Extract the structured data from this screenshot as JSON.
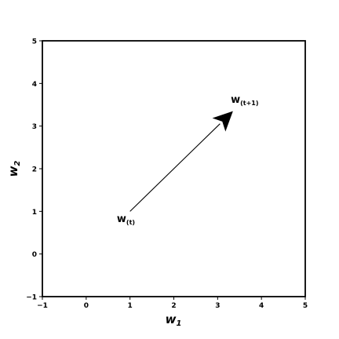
{
  "chart_data": {
    "type": "scatter",
    "xlim": [
      -1,
      5
    ],
    "ylim": [
      -1,
      5
    ],
    "x_ticks": [
      -1,
      0,
      1,
      2,
      3,
      4,
      5
    ],
    "y_ticks": [
      -1,
      0,
      1,
      2,
      3,
      4,
      5
    ],
    "x_tick_labels": [
      "−1",
      "0",
      "1",
      "2",
      "3",
      "4",
      "5"
    ],
    "y_tick_labels": [
      "−1",
      "0",
      "1",
      "2",
      "3",
      "4",
      "5"
    ],
    "xlabel": {
      "base": "w",
      "sub": "1"
    },
    "ylabel": {
      "base": "w",
      "sub": "2"
    },
    "grid": false,
    "arrow": {
      "start": {
        "x": 1.0,
        "y": 1.0
      },
      "end": {
        "x": 3.35,
        "y": 3.35
      },
      "color": "#000000"
    },
    "annotations": [
      {
        "id": "w-t",
        "base": "w",
        "sub": "(t)",
        "x": 0.7,
        "y": 0.75
      },
      {
        "id": "w-t1",
        "base": "w",
        "sub": "(t+1)",
        "x": 3.3,
        "y": 3.55
      }
    ]
  }
}
